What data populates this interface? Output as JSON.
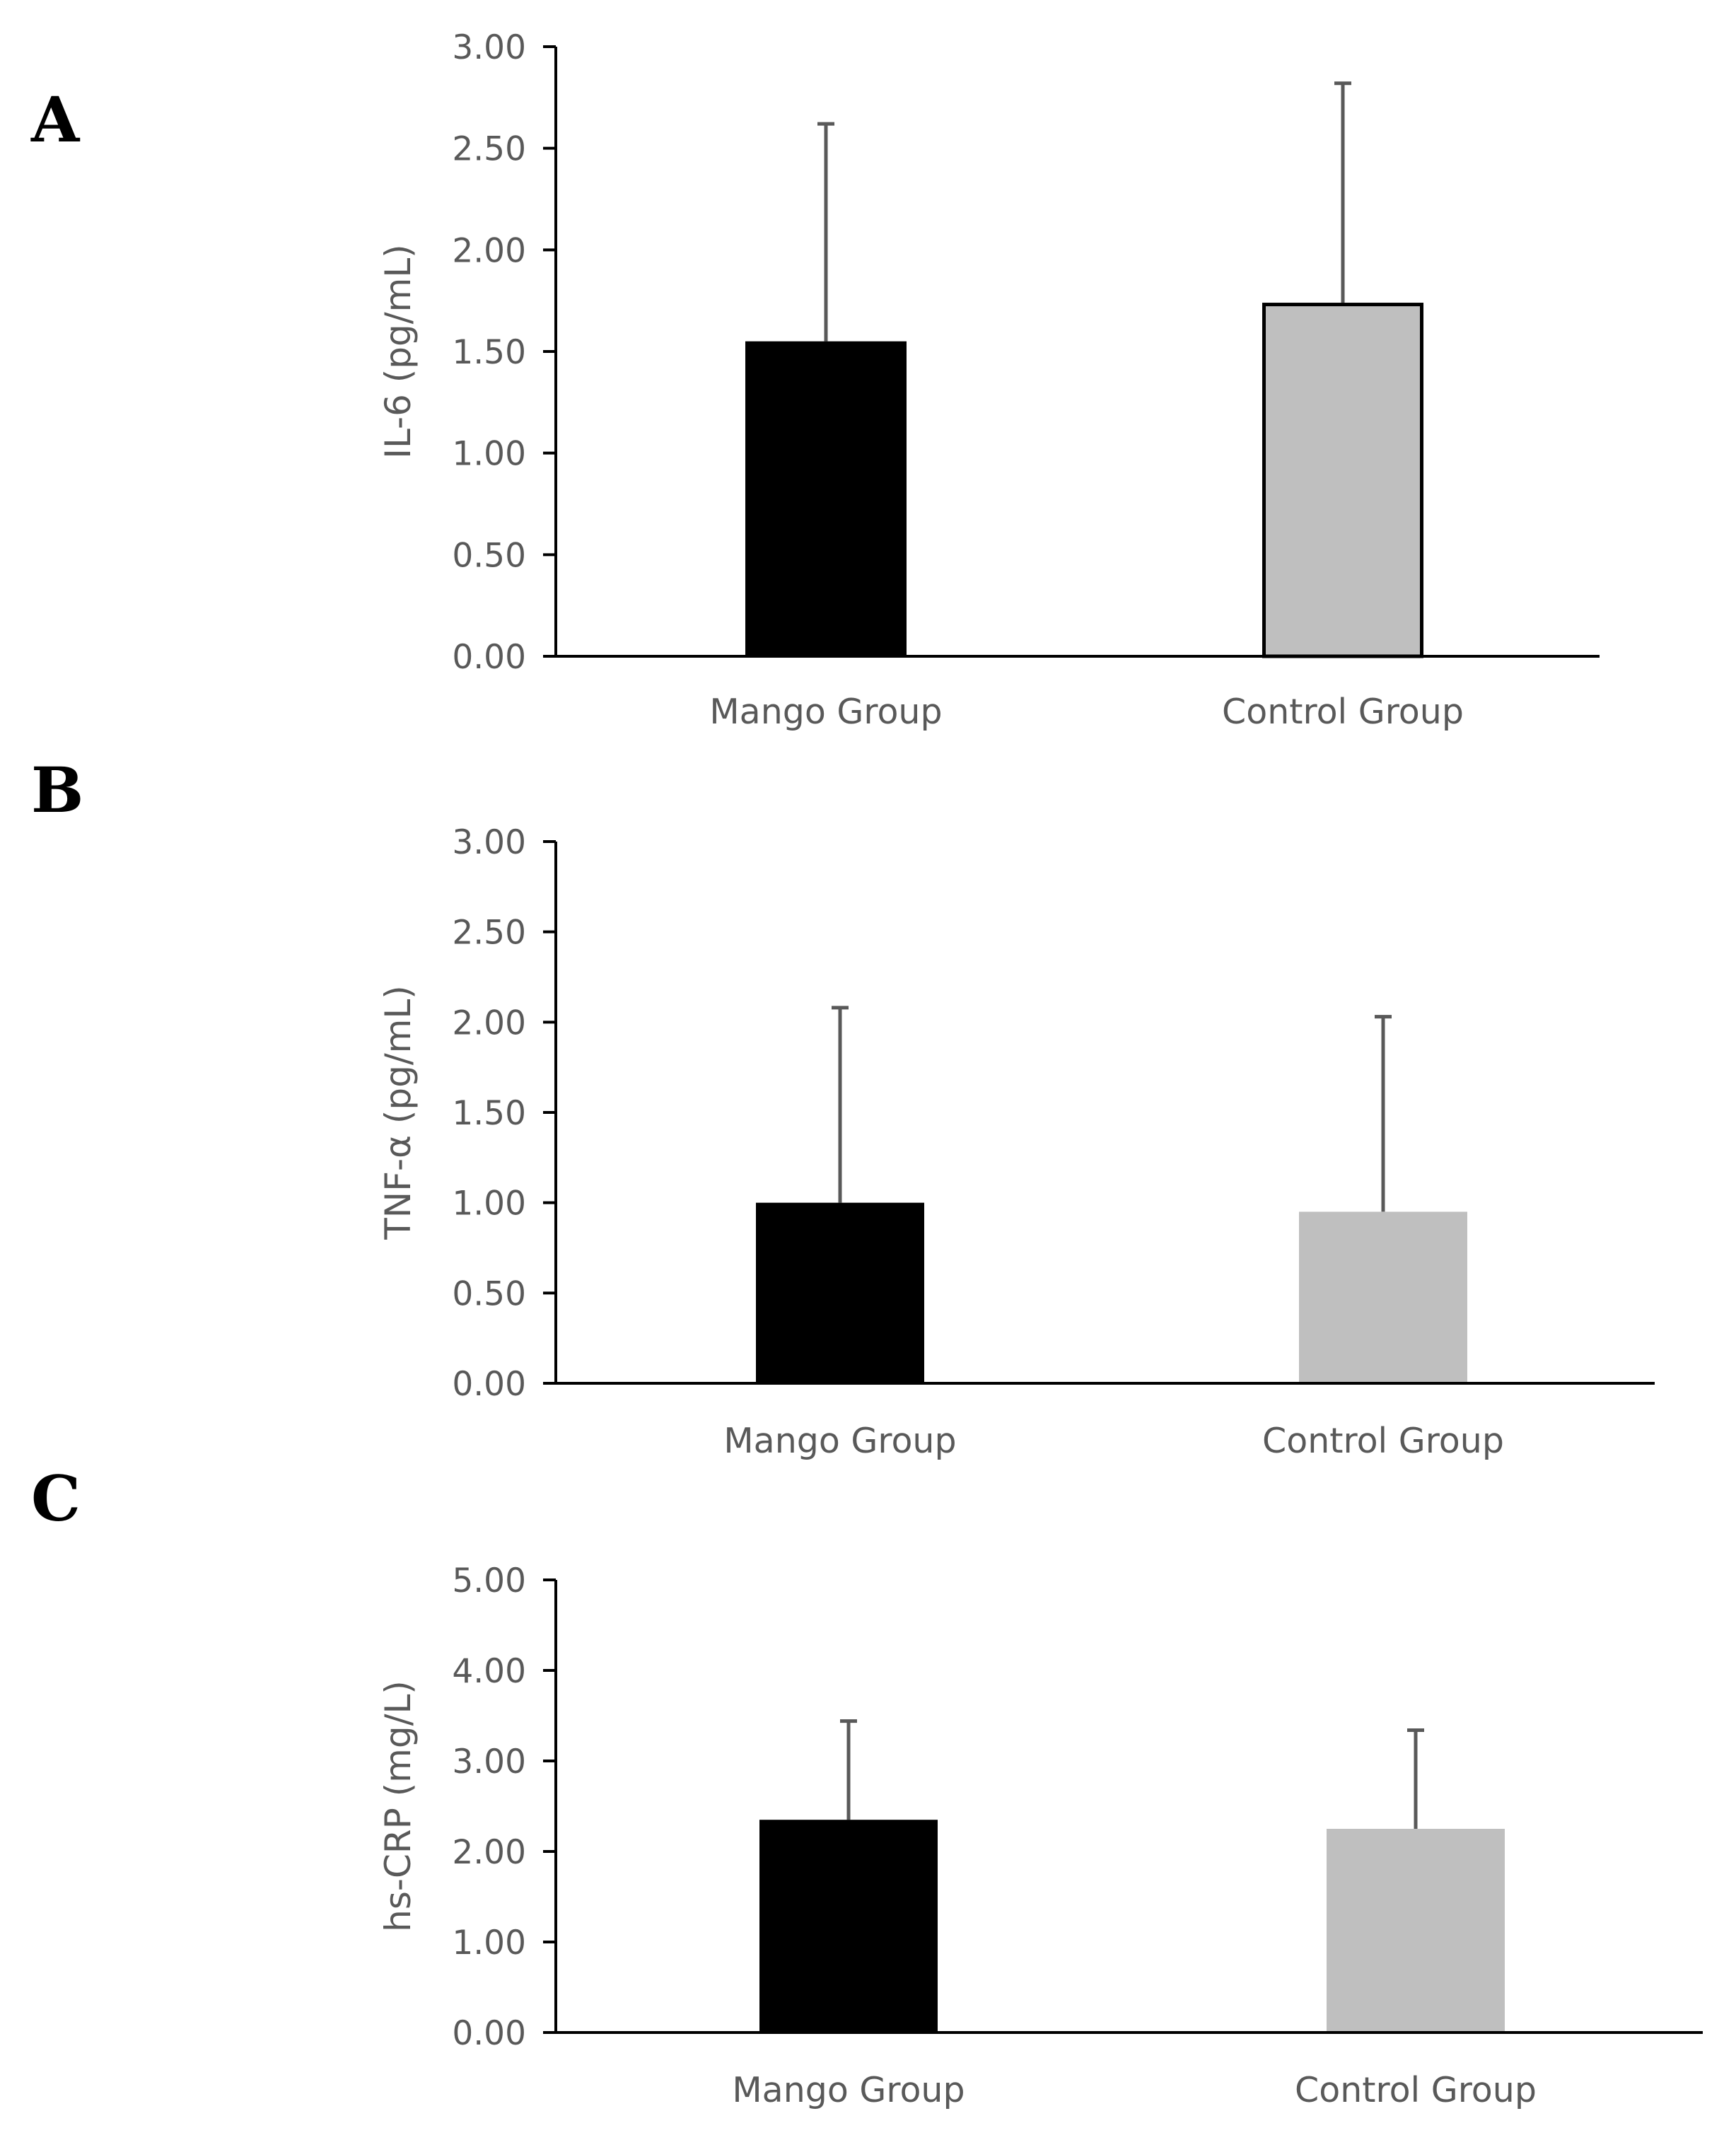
{
  "colors": {
    "axis": "#000000",
    "error_bar": "#595959",
    "text": "#595959"
  },
  "chart_data": [
    {
      "panel": "A",
      "type": "bar",
      "title": "",
      "xlabel": "",
      "ylabel": "IL-6 (pg/mL)",
      "ylim": [
        0,
        3
      ],
      "yticks": [
        "0.00",
        "0.50",
        "1.00",
        "1.50",
        "2.00",
        "2.50",
        "3.00"
      ],
      "categories": [
        "Mango Group",
        "Control Group"
      ],
      "values": [
        1.55,
        1.74
      ],
      "errors": [
        1.07,
        1.08
      ],
      "bar_colors": [
        "#000000",
        "#bfbfbf"
      ],
      "bar_outlined": [
        false,
        true
      ]
    },
    {
      "panel": "B",
      "type": "bar",
      "title": "",
      "xlabel": "",
      "ylabel": "TNF-α (pg/mL)",
      "ylim": [
        0,
        3
      ],
      "yticks": [
        "0.00",
        "0.50",
        "1.00",
        "1.50",
        "2.00",
        "2.50",
        "3.00"
      ],
      "categories": [
        "Mango Group",
        "Control Group"
      ],
      "values": [
        1.0,
        0.95
      ],
      "errors": [
        1.08,
        1.08
      ],
      "bar_colors": [
        "#000000",
        "#bfbfbf"
      ],
      "bar_outlined": [
        false,
        false
      ]
    },
    {
      "panel": "C",
      "type": "bar",
      "title": "",
      "xlabel": "",
      "ylabel": "hs-CRP (mg/L)",
      "ylim": [
        0,
        5
      ],
      "yticks": [
        "0.00",
        "1.00",
        "2.00",
        "3.00",
        "4.00",
        "5.00"
      ],
      "categories": [
        "Mango Group",
        "Control Group"
      ],
      "values": [
        2.35,
        2.25
      ],
      "errors": [
        1.09,
        1.09
      ],
      "bar_colors": [
        "#000000",
        "#bfbfbf"
      ],
      "bar_outlined": [
        false,
        false
      ]
    }
  ]
}
